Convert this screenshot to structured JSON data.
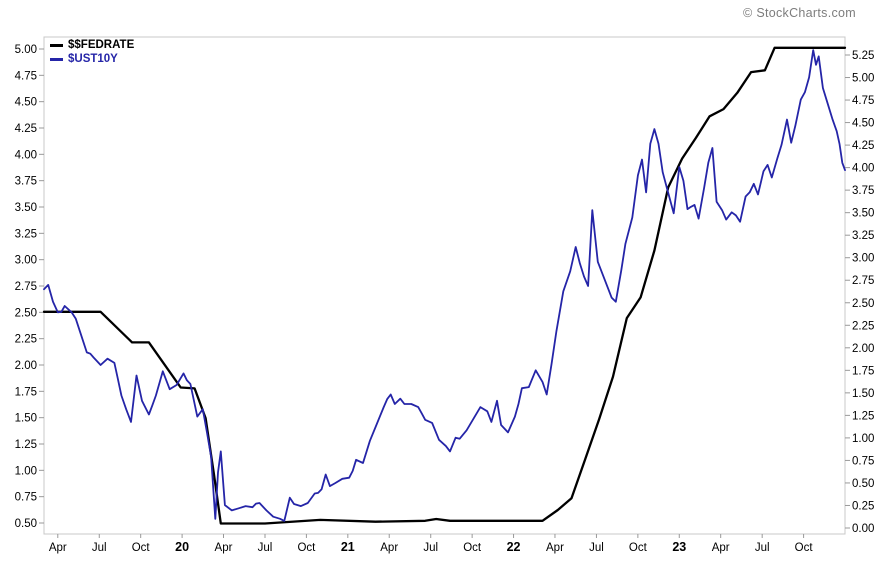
{
  "page": {
    "copyright": "© StockCharts.com"
  },
  "legend": {
    "items": [
      {
        "label": "$$FEDRATE",
        "color": "#000000"
      },
      {
        "label": "$UST10Y",
        "color": "#2525a8"
      }
    ]
  },
  "colors": {
    "fedrate": "#000000",
    "ust10y": "#2525a8",
    "border": "#c8c8c8",
    "tick": "#999999",
    "label": "#000000"
  },
  "chart_data": {
    "type": "line",
    "title": "",
    "x_range": "Mar 2019 - Dec 2023",
    "grid": false,
    "legend_position": "top-left",
    "axes": {
      "left": {
        "series": "$UST10Y",
        "min": 0.5,
        "max": 5.0,
        "step": 0.25,
        "labels": [
          "5.00",
          "4.75",
          "4.50",
          "4.25",
          "4.00",
          "3.75",
          "3.50",
          "3.25",
          "3.00",
          "2.75",
          "2.50",
          "2.25",
          "2.00",
          "1.75",
          "1.50",
          "1.25",
          "1.00",
          "0.75",
          "0.50"
        ]
      },
      "right": {
        "series": "$$FEDRATE",
        "min": 0.0,
        "max": 5.25,
        "step": 0.25,
        "labels": [
          "5.25",
          "5.00",
          "4.75",
          "4.50",
          "4.25",
          "4.00",
          "3.75",
          "3.50",
          "3.25",
          "3.00",
          "2.75",
          "2.50",
          "2.25",
          "2.00",
          "1.75",
          "1.50",
          "1.25",
          "1.00",
          "0.75",
          "0.50",
          "0.25",
          "0.00"
        ]
      }
    },
    "x_tick_labels": [
      {
        "f": 0.0172,
        "text": "Apr",
        "bold": false
      },
      {
        "f": 0.069,
        "text": "Jul",
        "bold": false
      },
      {
        "f": 0.1207,
        "text": "Oct",
        "bold": false
      },
      {
        "f": 0.1724,
        "text": "20",
        "bold": true
      },
      {
        "f": 0.2241,
        "text": "Apr",
        "bold": false
      },
      {
        "f": 0.2759,
        "text": "Jul",
        "bold": false
      },
      {
        "f": 0.3276,
        "text": "Oct",
        "bold": false
      },
      {
        "f": 0.3793,
        "text": "21",
        "bold": true
      },
      {
        "f": 0.431,
        "text": "Apr",
        "bold": false
      },
      {
        "f": 0.4828,
        "text": "Jul",
        "bold": false
      },
      {
        "f": 0.5345,
        "text": "Oct",
        "bold": false
      },
      {
        "f": 0.5862,
        "text": "22",
        "bold": true
      },
      {
        "f": 0.6379,
        "text": "Apr",
        "bold": false
      },
      {
        "f": 0.6897,
        "text": "Jul",
        "bold": false
      },
      {
        "f": 0.7414,
        "text": "Oct",
        "bold": false
      },
      {
        "f": 0.7931,
        "text": "23",
        "bold": true
      },
      {
        "f": 0.8448,
        "text": "Apr",
        "bold": false
      },
      {
        "f": 0.8966,
        "text": "Jul",
        "bold": false
      },
      {
        "f": 0.9483,
        "text": "Oct",
        "bold": false
      }
    ],
    "series": [
      {
        "name": "$$FEDRATE",
        "axis": "right",
        "color": "#000000",
        "width": 2.3,
        "jitter": 0,
        "points": [
          [
            0.0,
            2.4
          ],
          [
            0.0707,
            2.4
          ],
          [
            0.11,
            2.06
          ],
          [
            0.131,
            2.06
          ],
          [
            0.1707,
            1.56
          ],
          [
            0.188,
            1.55
          ],
          [
            0.2017,
            1.22
          ],
          [
            0.2121,
            0.6
          ],
          [
            0.2207,
            0.05
          ],
          [
            0.2759,
            0.05
          ],
          [
            0.3448,
            0.09
          ],
          [
            0.4138,
            0.07
          ],
          [
            0.4759,
            0.08
          ],
          [
            0.4897,
            0.1
          ],
          [
            0.5069,
            0.08
          ],
          [
            0.569,
            0.08
          ],
          [
            0.6224,
            0.08
          ],
          [
            0.6414,
            0.2
          ],
          [
            0.6586,
            0.33
          ],
          [
            0.6759,
            0.77
          ],
          [
            0.6931,
            1.21
          ],
          [
            0.7103,
            1.68
          ],
          [
            0.7276,
            2.33
          ],
          [
            0.7448,
            2.56
          ],
          [
            0.7621,
            3.08
          ],
          [
            0.7793,
            3.78
          ],
          [
            0.7966,
            4.1
          ],
          [
            0.8138,
            4.33
          ],
          [
            0.831,
            4.57
          ],
          [
            0.8483,
            4.65
          ],
          [
            0.8655,
            4.83
          ],
          [
            0.8828,
            5.06
          ],
          [
            0.9,
            5.08
          ],
          [
            0.9121,
            5.33
          ],
          [
            1.0,
            5.33
          ]
        ]
      },
      {
        "name": "$UST10Y",
        "axis": "left",
        "color": "#2525a8",
        "width": 1.8,
        "jitter": 0.03,
        "points": [
          [
            0.0,
            2.72
          ],
          [
            0.0052,
            2.76
          ],
          [
            0.0172,
            2.5
          ],
          [
            0.0259,
            2.56
          ],
          [
            0.0345,
            2.5
          ],
          [
            0.0448,
            2.32
          ],
          [
            0.0534,
            2.12
          ],
          [
            0.0621,
            2.07
          ],
          [
            0.0707,
            2.0
          ],
          [
            0.0793,
            2.06
          ],
          [
            0.0879,
            2.02
          ],
          [
            0.0966,
            1.71
          ],
          [
            0.1086,
            1.46
          ],
          [
            0.1155,
            1.9
          ],
          [
            0.1224,
            1.66
          ],
          [
            0.131,
            1.53
          ],
          [
            0.1397,
            1.71
          ],
          [
            0.1483,
            1.94
          ],
          [
            0.1569,
            1.77
          ],
          [
            0.1655,
            1.81
          ],
          [
            0.1741,
            1.92
          ],
          [
            0.1828,
            1.82
          ],
          [
            0.1914,
            1.51
          ],
          [
            0.1983,
            1.58
          ],
          [
            0.2086,
            1.13
          ],
          [
            0.2138,
            0.54
          ],
          [
            0.2172,
            0.98
          ],
          [
            0.2207,
            1.18
          ],
          [
            0.2259,
            0.67
          ],
          [
            0.2345,
            0.62
          ],
          [
            0.2431,
            0.64
          ],
          [
            0.2517,
            0.66
          ],
          [
            0.2603,
            0.65
          ],
          [
            0.269,
            0.69
          ],
          [
            0.2776,
            0.62
          ],
          [
            0.2862,
            0.56
          ],
          [
            0.2948,
            0.54
          ],
          [
            0.3,
            0.52
          ],
          [
            0.3069,
            0.74
          ],
          [
            0.3121,
            0.68
          ],
          [
            0.3207,
            0.66
          ],
          [
            0.3293,
            0.69
          ],
          [
            0.3379,
            0.78
          ],
          [
            0.3466,
            0.82
          ],
          [
            0.3517,
            0.96
          ],
          [
            0.3569,
            0.85
          ],
          [
            0.3638,
            0.88
          ],
          [
            0.3724,
            0.92
          ],
          [
            0.381,
            0.93
          ],
          [
            0.3897,
            1.1
          ],
          [
            0.3983,
            1.07
          ],
          [
            0.4069,
            1.28
          ],
          [
            0.4155,
            1.44
          ],
          [
            0.4241,
            1.6
          ],
          [
            0.4328,
            1.72
          ],
          [
            0.4379,
            1.63
          ],
          [
            0.4448,
            1.68
          ],
          [
            0.45,
            1.63
          ],
          [
            0.4586,
            1.63
          ],
          [
            0.4672,
            1.6
          ],
          [
            0.4759,
            1.48
          ],
          [
            0.4845,
            1.45
          ],
          [
            0.4931,
            1.29
          ],
          [
            0.5017,
            1.23
          ],
          [
            0.5069,
            1.18
          ],
          [
            0.5138,
            1.31
          ],
          [
            0.519,
            1.3
          ],
          [
            0.5276,
            1.38
          ],
          [
            0.5362,
            1.49
          ],
          [
            0.5448,
            1.6
          ],
          [
            0.5534,
            1.56
          ],
          [
            0.5586,
            1.46
          ],
          [
            0.5655,
            1.66
          ],
          [
            0.5707,
            1.43
          ],
          [
            0.5793,
            1.36
          ],
          [
            0.5879,
            1.51
          ],
          [
            0.5966,
            1.78
          ],
          [
            0.6052,
            1.79
          ],
          [
            0.6138,
            1.95
          ],
          [
            0.6224,
            1.84
          ],
          [
            0.6276,
            1.72
          ],
          [
            0.6397,
            2.32
          ],
          [
            0.6483,
            2.7
          ],
          [
            0.6569,
            2.89
          ],
          [
            0.6638,
            3.12
          ],
          [
            0.6741,
            2.84
          ],
          [
            0.6793,
            2.75
          ],
          [
            0.6845,
            3.47
          ],
          [
            0.6914,
            2.98
          ],
          [
            0.7,
            2.81
          ],
          [
            0.7086,
            2.64
          ],
          [
            0.7138,
            2.6
          ],
          [
            0.7207,
            2.9
          ],
          [
            0.7259,
            3.15
          ],
          [
            0.7345,
            3.4
          ],
          [
            0.7414,
            3.8
          ],
          [
            0.7466,
            3.95
          ],
          [
            0.7517,
            3.64
          ],
          [
            0.7569,
            4.1
          ],
          [
            0.7621,
            4.24
          ],
          [
            0.7672,
            4.1
          ],
          [
            0.7724,
            3.83
          ],
          [
            0.7776,
            3.68
          ],
          [
            0.7862,
            3.44
          ],
          [
            0.7931,
            3.88
          ],
          [
            0.7983,
            3.75
          ],
          [
            0.8034,
            3.48
          ],
          [
            0.8121,
            3.52
          ],
          [
            0.8172,
            3.39
          ],
          [
            0.8241,
            3.68
          ],
          [
            0.8293,
            3.92
          ],
          [
            0.8345,
            4.06
          ],
          [
            0.8397,
            3.55
          ],
          [
            0.8466,
            3.47
          ],
          [
            0.8517,
            3.38
          ],
          [
            0.8586,
            3.45
          ],
          [
            0.8638,
            3.42
          ],
          [
            0.869,
            3.36
          ],
          [
            0.8759,
            3.6
          ],
          [
            0.881,
            3.64
          ],
          [
            0.8862,
            3.72
          ],
          [
            0.8914,
            3.62
          ],
          [
            0.8983,
            3.84
          ],
          [
            0.9034,
            3.9
          ],
          [
            0.9086,
            3.78
          ],
          [
            0.9155,
            3.96
          ],
          [
            0.9207,
            4.09
          ],
          [
            0.9276,
            4.33
          ],
          [
            0.9328,
            4.11
          ],
          [
            0.9379,
            4.27
          ],
          [
            0.9448,
            4.52
          ],
          [
            0.95,
            4.59
          ],
          [
            0.9552,
            4.73
          ],
          [
            0.9603,
            4.99
          ],
          [
            0.9638,
            4.85
          ],
          [
            0.9672,
            4.93
          ],
          [
            0.9724,
            4.63
          ],
          [
            0.9776,
            4.5
          ],
          [
            0.9845,
            4.33
          ],
          [
            0.9897,
            4.22
          ],
          [
            0.9931,
            4.1
          ],
          [
            0.9966,
            3.92
          ],
          [
            1.0,
            3.85
          ]
        ]
      }
    ]
  }
}
